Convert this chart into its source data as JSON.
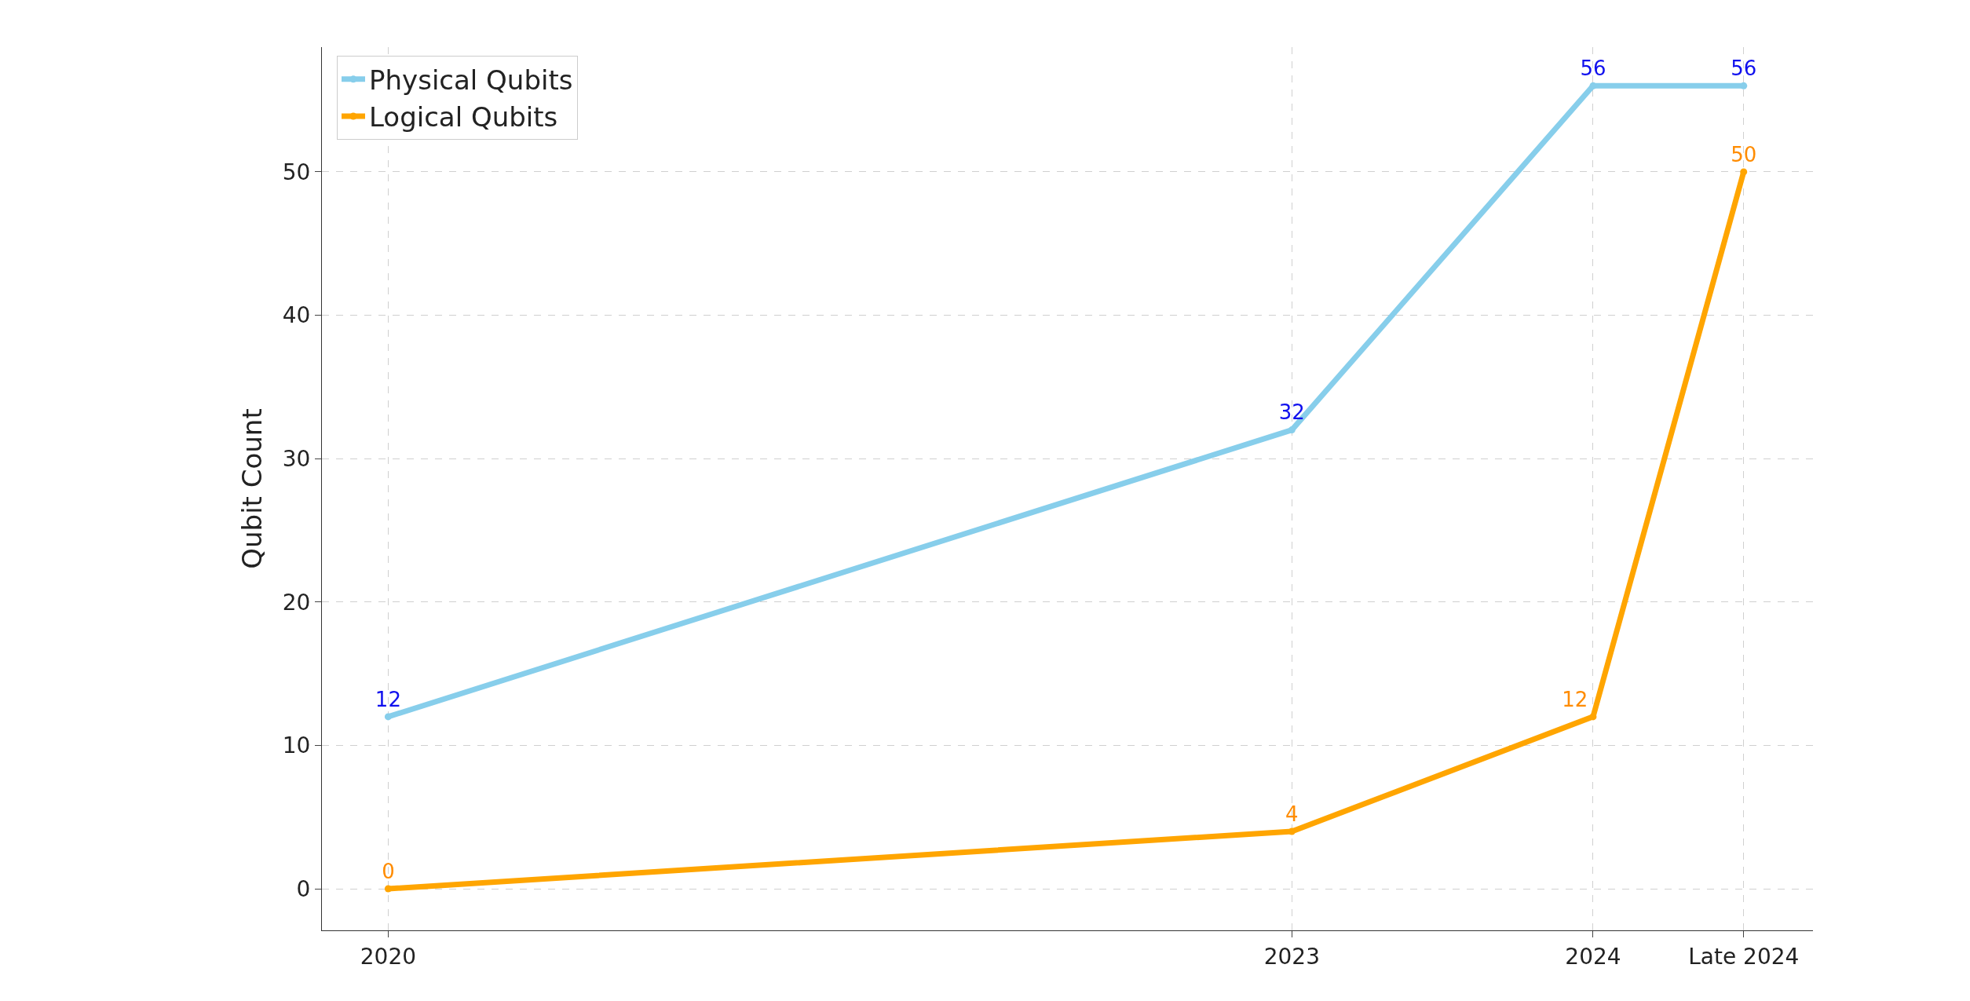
{
  "chart_data": {
    "type": "line",
    "ylabel": "Qubit Count",
    "x": [
      2020,
      2023,
      2024,
      2024.5
    ],
    "series": [
      {
        "name": "Physical Qubits",
        "color": "#87ceeb",
        "values": [
          12,
          32,
          56,
          56
        ]
      },
      {
        "name": "Logical Qubits",
        "color": "#ffa500",
        "values": [
          0,
          4,
          12,
          50
        ]
      }
    ],
    "xlim": [
      2019.78,
      2024.73
    ],
    "xticks": [
      2020,
      2023,
      2024,
      {
        "value": 2024.5,
        "label": "Late 2024"
      }
    ],
    "ylim": [
      -2.9,
      58.7
    ],
    "yticks": [
      0,
      10,
      20,
      30,
      40,
      50
    ],
    "data_labels": true,
    "grid": true,
    "legend": "top left",
    "marker": "circle",
    "line_style": "solid"
  }
}
